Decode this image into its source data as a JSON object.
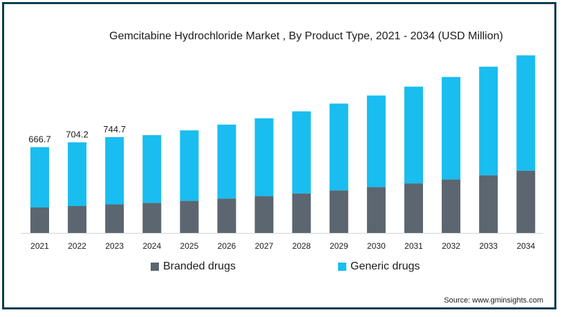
{
  "chart_data": {
    "type": "bar",
    "stacked": true,
    "title": "Gemcitabine Hydrochloride Market , By Product Type, 2021 - 2034 (USD Million)",
    "categories": [
      "2021",
      "2022",
      "2023",
      "2024",
      "2025",
      "2026",
      "2027",
      "2028",
      "2029",
      "2030",
      "2031",
      "2032",
      "2033",
      "2034"
    ],
    "series": [
      {
        "name": "Branded drugs",
        "color": "#5b6670",
        "values": [
          198,
          209,
          222,
          234,
          250,
          267,
          286,
          307,
          331,
          357,
          385,
          416,
          448,
          484
        ]
      },
      {
        "name": "Generic drugs",
        "color": "#19bdf0",
        "values": [
          468.7,
          495.2,
          522.7,
          526,
          547,
          575,
          605,
          638,
          674,
          711,
          752,
          796,
          844,
          896
        ]
      }
    ],
    "data_labels": [
      {
        "category": "2021",
        "text": "666.7"
      },
      {
        "category": "2022",
        "text": "704.2"
      },
      {
        "category": "2023",
        "text": "744.7"
      }
    ],
    "ylim": [
      0,
      1430
    ],
    "grid": false,
    "legend_position": "bottom"
  },
  "source": "Source: www.gminsights.com"
}
